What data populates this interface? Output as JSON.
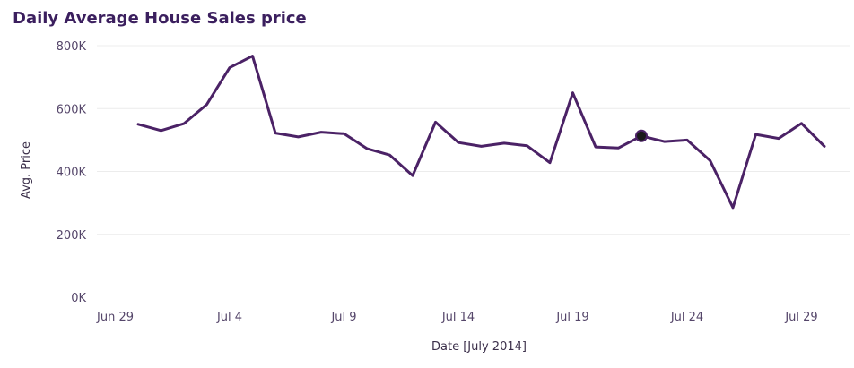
{
  "chart_data": {
    "type": "line",
    "title": "Daily Average House Sales price",
    "xlabel": "Date [July 2014]",
    "ylabel": "Avg. Price",
    "x_start": "2014-06-30",
    "x_end": "2014-07-31",
    "xlim": [
      "2014-06-29",
      "2014-07-31"
    ],
    "ylim": [
      0,
      800000
    ],
    "x_ticks": [
      {
        "date": "2014-06-29",
        "label": "Jun 29"
      },
      {
        "date": "2014-07-04",
        "label": "Jul 4"
      },
      {
        "date": "2014-07-09",
        "label": "Jul 9"
      },
      {
        "date": "2014-07-14",
        "label": "Jul 14"
      },
      {
        "date": "2014-07-19",
        "label": "Jul 19"
      },
      {
        "date": "2014-07-24",
        "label": "Jul 24"
      },
      {
        "date": "2014-07-29",
        "label": "Jul 29"
      }
    ],
    "y_ticks": [
      {
        "value": 0,
        "label": "0K"
      },
      {
        "value": 200000,
        "label": "200K"
      },
      {
        "value": 400000,
        "label": "400K"
      },
      {
        "value": 600000,
        "label": "600K"
      },
      {
        "value": 800000,
        "label": "800K"
      }
    ],
    "grid": "horizontal",
    "series": [
      {
        "color": "#4b2266",
        "points": [
          {
            "date": "2014-06-30",
            "value": 550000
          },
          {
            "date": "2014-07-01",
            "value": 530000
          },
          {
            "date": "2014-07-02",
            "value": 552000
          },
          {
            "date": "2014-07-03",
            "value": 613000
          },
          {
            "date": "2014-07-04",
            "value": 730000
          },
          {
            "date": "2014-07-05",
            "value": 767000
          },
          {
            "date": "2014-07-06",
            "value": 522000
          },
          {
            "date": "2014-07-07",
            "value": 510000
          },
          {
            "date": "2014-07-08",
            "value": 525000
          },
          {
            "date": "2014-07-09",
            "value": 520000
          },
          {
            "date": "2014-07-10",
            "value": 473000
          },
          {
            "date": "2014-07-11",
            "value": 452000
          },
          {
            "date": "2014-07-12",
            "value": 387000
          },
          {
            "date": "2014-07-13",
            "value": 557000
          },
          {
            "date": "2014-07-14",
            "value": 492000
          },
          {
            "date": "2014-07-15",
            "value": 480000
          },
          {
            "date": "2014-07-16",
            "value": 490000
          },
          {
            "date": "2014-07-17",
            "value": 482000
          },
          {
            "date": "2014-07-18",
            "value": 428000
          },
          {
            "date": "2014-07-19",
            "value": 650000
          },
          {
            "date": "2014-07-20",
            "value": 478000
          },
          {
            "date": "2014-07-21",
            "value": 475000
          },
          {
            "date": "2014-07-22",
            "value": 513000
          },
          {
            "date": "2014-07-23",
            "value": 495000
          },
          {
            "date": "2014-07-24",
            "value": 500000
          },
          {
            "date": "2014-07-25",
            "value": 435000
          },
          {
            "date": "2014-07-26",
            "value": 285000
          },
          {
            "date": "2014-07-27",
            "value": 518000
          },
          {
            "date": "2014-07-28",
            "value": 505000
          },
          {
            "date": "2014-07-29",
            "value": 553000
          },
          {
            "date": "2014-07-30",
            "value": 480000
          }
        ]
      }
    ],
    "highlighted_point": {
      "date": "2014-07-22",
      "value": 513000
    }
  }
}
